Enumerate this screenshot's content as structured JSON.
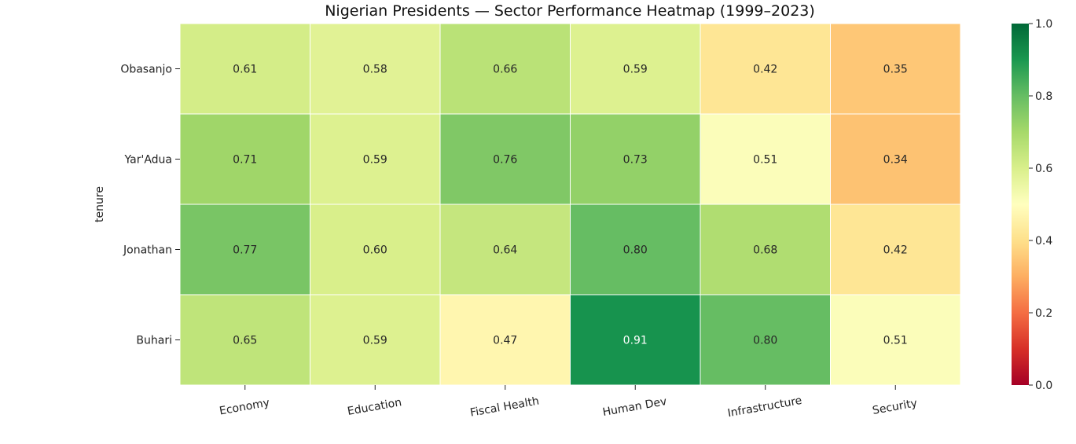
{
  "chart_data": {
    "type": "heatmap",
    "title": "Nigerian Presidents — Sector Performance Heatmap (1999–2023)",
    "xlabel": "",
    "ylabel": "tenure",
    "x_categories": [
      "Economy",
      "Education",
      "Fiscal Health",
      "Human Dev",
      "Infrastructure",
      "Security"
    ],
    "y_categories": [
      "Obasanjo",
      "Yar'Adua",
      "Jonathan",
      "Buhari"
    ],
    "values": [
      [
        0.61,
        0.58,
        0.66,
        0.59,
        0.42,
        0.35
      ],
      [
        0.71,
        0.59,
        0.76,
        0.73,
        0.51,
        0.34
      ],
      [
        0.77,
        0.6,
        0.64,
        0.8,
        0.68,
        0.42
      ],
      [
        0.65,
        0.59,
        0.47,
        0.91,
        0.8,
        0.51
      ]
    ],
    "value_labels": [
      [
        "0.61",
        "0.58",
        "0.66",
        "0.59",
        "0.42",
        "0.35"
      ],
      [
        "0.71",
        "0.59",
        "0.76",
        "0.73",
        "0.51",
        "0.34"
      ],
      [
        "0.77",
        "0.60",
        "0.64",
        "0.80",
        "0.68",
        "0.42"
      ],
      [
        "0.65",
        "0.59",
        "0.47",
        "0.91",
        "0.80",
        "0.51"
      ]
    ],
    "colormap": "RdYlGn",
    "vmin": 0.0,
    "vmax": 1.0,
    "colorbar_ticks": [
      0.0,
      0.2,
      0.4,
      0.6,
      0.8,
      1.0
    ],
    "colorbar_tick_labels": [
      "0.0",
      "0.2",
      "0.4",
      "0.6",
      "0.8",
      "1.0"
    ]
  }
}
